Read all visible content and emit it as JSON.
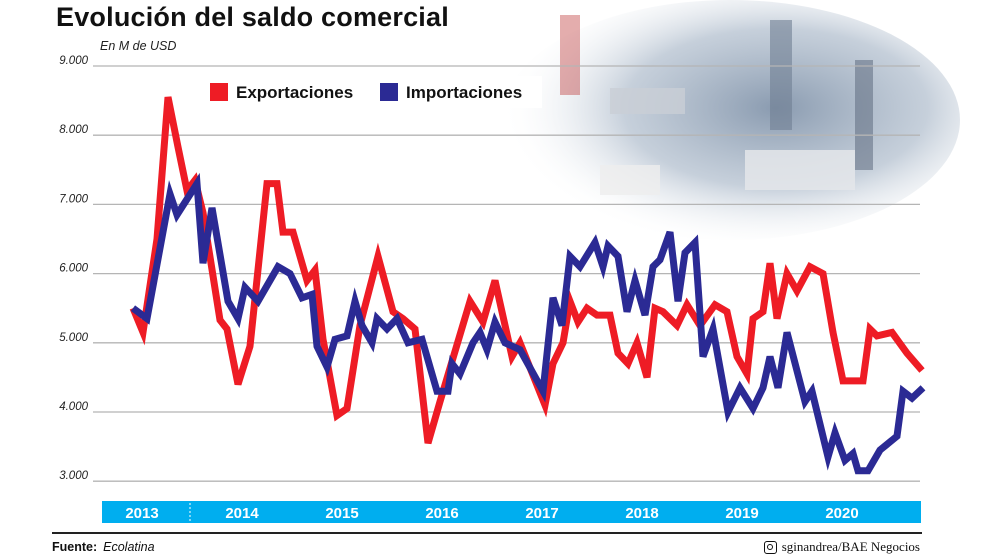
{
  "header": {
    "title": "Evolución del saldo comercial",
    "unit": "En M de USD"
  },
  "footer": {
    "source_label": "Fuente:",
    "source": "Ecolatina",
    "credit": "sginandrea/BAE Negocios",
    "credit_icon": "instagram-icon"
  },
  "colors": {
    "exports": "#ee1c25",
    "imports": "#2b2a94",
    "year_bar": "#00aeef",
    "grid": "#b5b5b5"
  },
  "chart_data": {
    "type": "line",
    "title": "Evolución del saldo comercial",
    "ylabel": "En M de USD",
    "xlabel": "",
    "ylim": [
      3000,
      9000
    ],
    "yticks": [
      "9.000",
      "8.000",
      "7.000",
      "6.000",
      "5.000",
      "4.000",
      "3.000"
    ],
    "ytick_values": [
      9000,
      8000,
      7000,
      6000,
      5000,
      4000,
      3000
    ],
    "xlim": [
      2013,
      2021.3
    ],
    "xticks": [
      "2013",
      "2014",
      "2015",
      "2016",
      "2017",
      "2018",
      "2019",
      "2020"
    ],
    "grid": true,
    "legend": "top-center",
    "series": [
      {
        "name": "Exportaciones",
        "color": "#ee1c25",
        "points": [
          [
            2013.41,
            5500
          ],
          [
            2013.51,
            5150
          ],
          [
            2013.65,
            6500
          ],
          [
            2013.76,
            8550
          ],
          [
            2013.86,
            7830
          ],
          [
            2013.95,
            7200
          ],
          [
            2014.03,
            7350
          ],
          [
            2014.11,
            6880
          ],
          [
            2014.28,
            5330
          ],
          [
            2014.35,
            5200
          ],
          [
            2014.46,
            4400
          ],
          [
            2014.58,
            4950
          ],
          [
            2014.75,
            7300
          ],
          [
            2014.85,
            7300
          ],
          [
            2014.91,
            6600
          ],
          [
            2015.01,
            6600
          ],
          [
            2015.15,
            5900
          ],
          [
            2015.23,
            6050
          ],
          [
            2015.31,
            5050
          ],
          [
            2015.45,
            3950
          ],
          [
            2015.55,
            4050
          ],
          [
            2015.68,
            5250
          ],
          [
            2015.86,
            6250
          ],
          [
            2016.01,
            5450
          ],
          [
            2016.11,
            5350
          ],
          [
            2016.23,
            5200
          ],
          [
            2016.36,
            3550
          ],
          [
            2016.48,
            4150
          ],
          [
            2016.78,
            5600
          ],
          [
            2016.91,
            5300
          ],
          [
            2017.03,
            5900
          ],
          [
            2017.2,
            4800
          ],
          [
            2017.28,
            5000
          ],
          [
            2017.53,
            4100
          ],
          [
            2017.61,
            4700
          ],
          [
            2017.71,
            5000
          ],
          [
            2017.78,
            5600
          ],
          [
            2017.86,
            5300
          ],
          [
            2017.95,
            5500
          ],
          [
            2018.05,
            5400
          ],
          [
            2018.18,
            5400
          ],
          [
            2018.26,
            4850
          ],
          [
            2018.36,
            4700
          ],
          [
            2018.45,
            5000
          ],
          [
            2018.55,
            4500
          ],
          [
            2018.63,
            5500
          ],
          [
            2018.71,
            5450
          ],
          [
            2018.85,
            5250
          ],
          [
            2018.95,
            5550
          ],
          [
            2019.08,
            5250
          ],
          [
            2019.23,
            5550
          ],
          [
            2019.35,
            5450
          ],
          [
            2019.45,
            4800
          ],
          [
            2019.55,
            4550
          ],
          [
            2019.61,
            5350
          ],
          [
            2019.71,
            5450
          ],
          [
            2019.78,
            6150
          ],
          [
            2019.85,
            5350
          ],
          [
            2019.95,
            6000
          ],
          [
            2020.05,
            5750
          ],
          [
            2020.18,
            6100
          ],
          [
            2020.31,
            6000
          ],
          [
            2020.41,
            5150
          ],
          [
            2020.51,
            4450
          ],
          [
            2020.71,
            4450
          ],
          [
            2020.78,
            5200
          ],
          [
            2020.85,
            5100
          ],
          [
            2021.0,
            5150
          ],
          [
            2021.15,
            4850
          ],
          [
            2021.3,
            4600
          ]
        ]
      },
      {
        "name": "Importaciones",
        "color": "#2b2a94",
        "points": [
          [
            2013.41,
            5500
          ],
          [
            2013.55,
            5350
          ],
          [
            2013.78,
            7150
          ],
          [
            2013.85,
            6850
          ],
          [
            2014.05,
            7300
          ],
          [
            2014.11,
            6150
          ],
          [
            2014.2,
            6950
          ],
          [
            2014.36,
            5600
          ],
          [
            2014.46,
            5350
          ],
          [
            2014.53,
            5800
          ],
          [
            2014.66,
            5600
          ],
          [
            2014.86,
            6100
          ],
          [
            2014.98,
            6000
          ],
          [
            2015.1,
            5650
          ],
          [
            2015.2,
            5700
          ],
          [
            2015.25,
            4950
          ],
          [
            2015.35,
            4650
          ],
          [
            2015.43,
            5050
          ],
          [
            2015.55,
            5100
          ],
          [
            2015.63,
            5600
          ],
          [
            2015.7,
            5250
          ],
          [
            2015.8,
            5000
          ],
          [
            2015.85,
            5350
          ],
          [
            2015.95,
            5200
          ],
          [
            2016.05,
            5350
          ],
          [
            2016.16,
            5000
          ],
          [
            2016.3,
            5050
          ],
          [
            2016.45,
            4300
          ],
          [
            2016.56,
            4300
          ],
          [
            2016.6,
            4700
          ],
          [
            2016.68,
            4550
          ],
          [
            2016.81,
            5000
          ],
          [
            2016.88,
            5150
          ],
          [
            2016.95,
            4900
          ],
          [
            2017.03,
            5300
          ],
          [
            2017.13,
            5000
          ],
          [
            2017.28,
            4900
          ],
          [
            2017.51,
            4300
          ],
          [
            2017.61,
            5650
          ],
          [
            2017.7,
            5250
          ],
          [
            2017.78,
            6250
          ],
          [
            2017.88,
            6100
          ],
          [
            2018.03,
            6450
          ],
          [
            2018.11,
            6100
          ],
          [
            2018.16,
            6400
          ],
          [
            2018.26,
            6250
          ],
          [
            2018.35,
            5450
          ],
          [
            2018.43,
            5900
          ],
          [
            2018.53,
            5400
          ],
          [
            2018.61,
            6100
          ],
          [
            2018.68,
            6200
          ],
          [
            2018.78,
            6600
          ],
          [
            2018.86,
            5600
          ],
          [
            2018.93,
            6300
          ],
          [
            2019.03,
            6450
          ],
          [
            2019.11,
            4800
          ],
          [
            2019.21,
            5200
          ],
          [
            2019.36,
            4000
          ],
          [
            2019.48,
            4350
          ],
          [
            2019.61,
            4050
          ],
          [
            2019.71,
            4350
          ],
          [
            2019.78,
            4800
          ],
          [
            2019.86,
            4350
          ],
          [
            2019.95,
            5150
          ],
          [
            2020.13,
            4150
          ],
          [
            2020.2,
            4300
          ],
          [
            2020.36,
            3350
          ],
          [
            2020.43,
            3700
          ],
          [
            2020.53,
            3300
          ],
          [
            2020.61,
            3400
          ],
          [
            2020.66,
            3150
          ],
          [
            2020.76,
            3150
          ],
          [
            2020.88,
            3450
          ],
          [
            2021.05,
            3650
          ],
          [
            2021.11,
            4300
          ],
          [
            2021.2,
            4200
          ],
          [
            2021.31,
            4350
          ]
        ]
      }
    ]
  }
}
